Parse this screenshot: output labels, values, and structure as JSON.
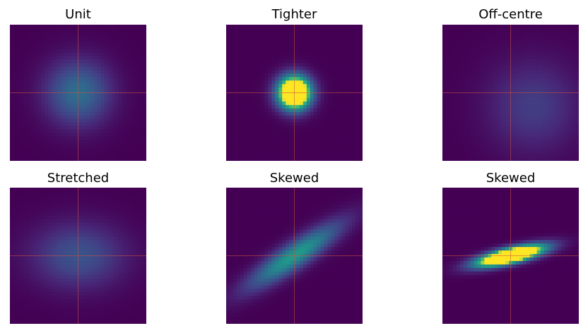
{
  "chart_data": [
    {
      "type": "heatmap",
      "title": "Unit",
      "distribution": "gaussian-2d",
      "mean": [
        0,
        0
      ],
      "cov": [
        [
          1,
          0
        ],
        [
          0,
          1
        ]
      ],
      "extent": [
        -3,
        3,
        -3,
        3
      ],
      "grid": 39,
      "colormap": "viridis",
      "clim": [
        0,
        0.35
      ],
      "crosshair": [
        0,
        0
      ],
      "axes": "off"
    },
    {
      "type": "heatmap",
      "title": "Tighter",
      "distribution": "gaussian-2d",
      "mean": [
        0,
        0
      ],
      "cov": [
        [
          0.25,
          0
        ],
        [
          0,
          0.25
        ]
      ],
      "extent": [
        -3,
        3,
        -3,
        3
      ],
      "grid": 39,
      "colormap": "viridis",
      "clim": [
        0,
        0.35
      ],
      "crosshair": [
        0,
        0
      ],
      "axes": "off"
    },
    {
      "type": "heatmap",
      "title": "Off-centre",
      "distribution": "gaussian-2d",
      "mean": [
        1,
        -0.6
      ],
      "cov": [
        [
          2,
          0
        ],
        [
          0,
          2
        ]
      ],
      "extent": [
        -3,
        3,
        -3,
        3
      ],
      "grid": 39,
      "colormap": "viridis",
      "clim": [
        0,
        0.35
      ],
      "crosshair": [
        0,
        0
      ],
      "axes": "off"
    },
    {
      "type": "heatmap",
      "title": "Stretched",
      "distribution": "gaussian-2d",
      "mean": [
        0,
        0
      ],
      "cov": [
        [
          2,
          0
        ],
        [
          0,
          1
        ]
      ],
      "extent": [
        -3,
        3,
        -3,
        3
      ],
      "grid": 39,
      "colormap": "viridis",
      "clim": [
        0,
        0.35
      ],
      "crosshair": [
        0,
        0
      ],
      "axes": "off"
    },
    {
      "type": "heatmap",
      "title": "Skewed",
      "distribution": "gaussian-2d",
      "mean": [
        0,
        0
      ],
      "cov": [
        [
          2,
          1.25
        ],
        [
          1.25,
          1
        ]
      ],
      "extent": [
        -3,
        3,
        -3,
        3
      ],
      "grid": 39,
      "colormap": "viridis",
      "clim": [
        0,
        0.35
      ],
      "crosshair": [
        0,
        0
      ],
      "axes": "off"
    },
    {
      "type": "heatmap",
      "title": "Skewed",
      "distribution": "gaussian-2d",
      "mean": [
        0,
        0
      ],
      "cov": [
        [
          1,
          0.22
        ],
        [
          0.22,
          0.1
        ]
      ],
      "extent": [
        -3,
        3,
        -3,
        3
      ],
      "grid": 39,
      "colormap": "viridis",
      "clim": [
        0,
        0.35
      ],
      "crosshair": [
        0,
        0
      ],
      "axes": "off"
    }
  ]
}
